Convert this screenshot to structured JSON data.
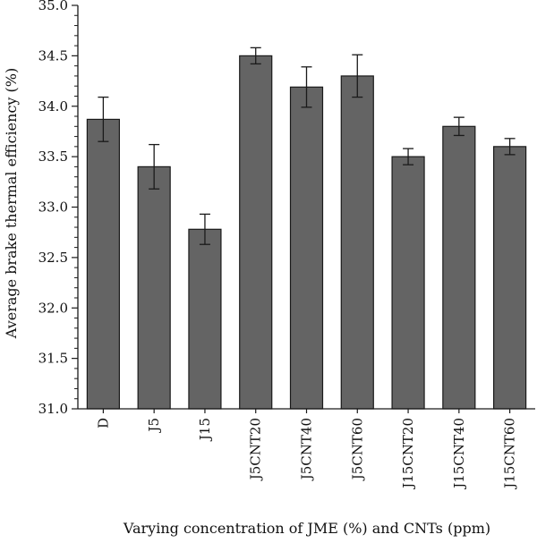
{
  "chart_data": {
    "type": "bar",
    "title": "",
    "xlabel": "Varying concentration of JME (%) and CNTs (ppm)",
    "ylabel": "Average brake thermal efficiency (%)",
    "categories": [
      "D",
      "J5",
      "J15",
      "J5CNT20",
      "J5CNT40",
      "J5CNT60",
      "J15CNT20",
      "J15CNT40",
      "J15CNT60"
    ],
    "values": [
      33.87,
      33.4,
      32.78,
      34.5,
      34.19,
      34.3,
      33.5,
      33.8,
      33.6
    ],
    "errors": [
      0.22,
      0.22,
      0.15,
      0.08,
      0.2,
      0.21,
      0.08,
      0.09,
      0.08
    ],
    "ylim": [
      31.0,
      35.0
    ],
    "yticks": [
      "31.0",
      "31.5",
      "32.0",
      "32.5",
      "33.0",
      "33.5",
      "34.0",
      "34.5",
      "35.0"
    ],
    "grid": false,
    "colors": {
      "bar": "#646464",
      "bar_stroke": "#1a1a1a",
      "axis": "#1a1a1a"
    }
  }
}
